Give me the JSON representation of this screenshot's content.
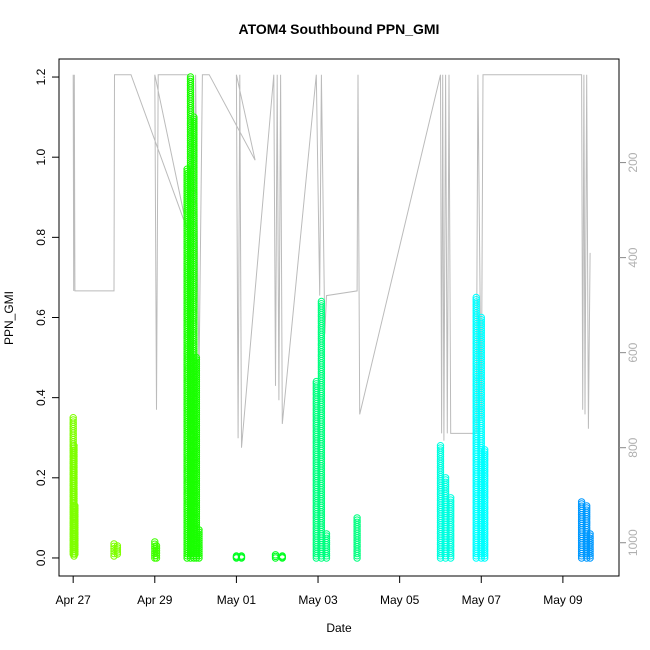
{
  "chart_data": {
    "type": "scatter",
    "title": "ATOM4 Southbound PPN_GMI",
    "xlabel": "Date",
    "ylabel": "PPN_GMI",
    "x_ticks": [
      "Apr 27",
      "Apr 29",
      "May 01",
      "May 03",
      "May 05",
      "May 07",
      "May 09"
    ],
    "y_ticks": [
      "0.0",
      "0.2",
      "0.4",
      "0.6",
      "0.8",
      "1.0",
      "1.2"
    ],
    "y2_ticks": [
      "200",
      "400",
      "600",
      "800",
      "1000"
    ],
    "xlim": [
      "2015-04-26T15:40",
      "2015-05-10T09:00"
    ],
    "ylim": [
      -0.045,
      1.245
    ],
    "y2lim": [
      -18,
      1070
    ],
    "grid": false,
    "legend": "none",
    "series": [
      {
        "color": "#7fff00",
        "points": [
          {
            "x": "2015-04-27T00:00",
            "min": 0.01,
            "max": 0.35
          },
          {
            "x": "2015-04-27T00:30",
            "min": 0.005,
            "max": 0.28
          },
          {
            "x": "2015-04-27T01:00",
            "min": 0.01,
            "max": 0.13
          },
          {
            "x": "2015-04-28T00:00",
            "min": 0.005,
            "max": 0.035
          },
          {
            "x": "2015-04-28T02:00",
            "min": 0.01,
            "max": 0.03
          }
        ]
      },
      {
        "color": "#40ff00",
        "points": [
          {
            "x": "2015-04-29T00:00",
            "min": 0.0,
            "max": 0.04
          },
          {
            "x": "2015-04-29T01:00",
            "min": 0.0,
            "max": 0.03
          }
        ]
      },
      {
        "color": "#1aff00",
        "points": [
          {
            "x": "2015-04-29T19:00",
            "min": 0.0,
            "max": 0.97
          },
          {
            "x": "2015-04-29T21:00",
            "min": 0.0,
            "max": 1.2
          },
          {
            "x": "2015-04-29T23:00",
            "min": 0.0,
            "max": 1.1
          },
          {
            "x": "2015-04-30T00:30",
            "min": 0.0,
            "max": 0.5
          },
          {
            "x": "2015-04-30T02:00",
            "min": 0.0,
            "max": 0.07
          }
        ]
      },
      {
        "color": "#00ff20",
        "points": [
          {
            "x": "2015-05-01T00:00",
            "min": 0.0,
            "max": 0.005
          },
          {
            "x": "2015-05-01T03:00",
            "min": 0.0,
            "max": 0.005
          },
          {
            "x": "2015-05-01T23:00",
            "min": 0.0,
            "max": 0.008
          },
          {
            "x": "2015-05-02T03:00",
            "min": 0.0,
            "max": 0.005
          }
        ]
      },
      {
        "color": "#00ff80",
        "points": [
          {
            "x": "2015-05-02T23:00",
            "min": 0.0,
            "max": 0.44
          },
          {
            "x": "2015-05-03T02:00",
            "min": 0.0,
            "max": 0.64
          },
          {
            "x": "2015-05-03T05:00",
            "min": 0.0,
            "max": 0.06
          },
          {
            "x": "2015-05-03T23:00",
            "min": 0.0,
            "max": 0.1
          }
        ]
      },
      {
        "color": "#00ffe0",
        "points": [
          {
            "x": "2015-05-06T00:00",
            "min": 0.0,
            "max": 0.28
          },
          {
            "x": "2015-05-06T03:00",
            "min": 0.0,
            "max": 0.2
          },
          {
            "x": "2015-05-06T06:00",
            "min": 0.0,
            "max": 0.15
          }
        ]
      },
      {
        "color": "#00ffff",
        "points": [
          {
            "x": "2015-05-06T21:00",
            "min": 0.0,
            "max": 0.65
          },
          {
            "x": "2015-05-07T00:00",
            "min": 0.0,
            "max": 0.6
          },
          {
            "x": "2015-05-07T02:00",
            "min": 0.0,
            "max": 0.27
          }
        ]
      },
      {
        "color": "#0099ff",
        "points": [
          {
            "x": "2015-05-09T11:00",
            "min": 0.0,
            "max": 0.14
          },
          {
            "x": "2015-05-09T14:00",
            "min": 0.0,
            "max": 0.13
          },
          {
            "x": "2015-05-09T16:00",
            "min": 0.0,
            "max": 0.06
          }
        ]
      }
    ],
    "secondary_trace": {
      "color": "#bbbbbb",
      "points": [
        [
          "2015-04-27T00:00",
          15
        ],
        [
          "2015-04-27T00:20",
          470
        ],
        [
          "2015-04-27T00:40",
          15
        ],
        [
          "2015-04-27T01:00",
          470
        ],
        [
          "2015-04-28T00:00",
          470
        ],
        [
          "2015-04-28T00:20",
          15
        ],
        [
          "2015-04-28T10:00",
          15
        ],
        [
          "2015-04-29T19:00",
          340
        ],
        [
          "2015-04-29T00:00",
          15
        ],
        [
          "2015-04-29T01:00",
          720
        ],
        [
          "2015-04-29T02:00",
          15
        ],
        [
          "2015-04-29T20:00",
          15
        ],
        [
          "2015-04-29T22:00",
          770
        ],
        [
          "2015-04-30T00:00",
          15
        ],
        [
          "2015-04-30T02:00",
          650
        ],
        [
          "2015-04-30T04:00",
          15
        ],
        [
          "2015-04-30T08:00",
          15
        ],
        [
          "2015-05-01T11:00",
          195
        ],
        [
          "2015-05-01T00:00",
          15
        ],
        [
          "2015-05-01T01:00",
          780
        ],
        [
          "2015-05-01T02:00",
          15
        ],
        [
          "2015-05-01T03:00",
          800
        ],
        [
          "2015-05-01T22:00",
          15
        ],
        [
          "2015-05-01T23:00",
          670
        ],
        [
          "2015-05-02T00:00",
          15
        ],
        [
          "2015-05-02T01:00",
          700
        ],
        [
          "2015-05-02T02:00",
          15
        ],
        [
          "2015-05-02T03:00",
          750
        ],
        [
          "2015-05-02T23:00",
          15
        ],
        [
          "2015-05-03T01:00",
          480
        ],
        [
          "2015-05-03T02:00",
          15
        ],
        [
          "2015-05-03T04:00",
          560
        ],
        [
          "2015-05-03T05:00",
          480
        ],
        [
          "2015-05-03T23:00",
          470
        ],
        [
          "2015-05-03T23:30",
          15
        ],
        [
          "2015-05-04T00:30",
          730
        ],
        [
          "2015-05-06T00:00",
          15
        ],
        [
          "2015-05-06T00:40",
          770
        ],
        [
          "2015-05-06T01:20",
          15
        ],
        [
          "2015-05-06T02:00",
          785
        ],
        [
          "2015-05-06T03:00",
          15
        ],
        [
          "2015-05-06T04:00",
          770
        ],
        [
          "2015-05-06T05:00",
          15
        ],
        [
          "2015-05-06T06:00",
          770
        ],
        [
          "2015-05-06T21:00",
          770
        ],
        [
          "2015-05-06T22:00",
          15
        ],
        [
          "2015-05-07T00:00",
          740
        ],
        [
          "2015-05-07T01:00",
          15
        ],
        [
          "2015-05-09T11:00",
          15
        ],
        [
          "2015-05-09T11:40",
          720
        ],
        [
          "2015-05-09T12:20",
          15
        ],
        [
          "2015-05-09T13:00",
          730
        ],
        [
          "2015-05-09T14:00",
          15
        ],
        [
          "2015-05-09T15:00",
          760
        ],
        [
          "2015-05-09T16:00",
          390
        ]
      ]
    }
  }
}
